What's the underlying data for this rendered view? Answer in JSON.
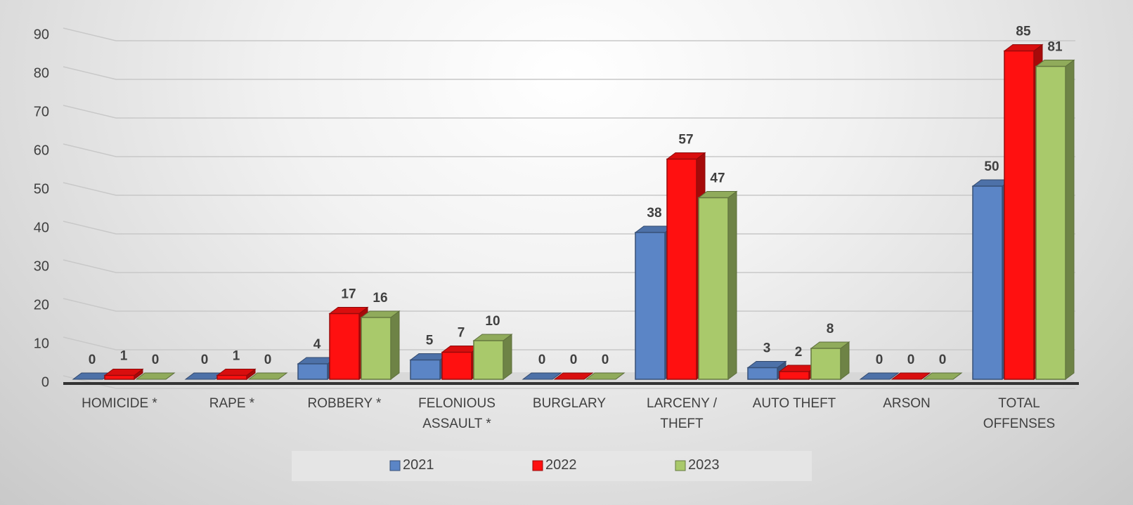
{
  "chart_data": {
    "type": "bar",
    "categories": [
      "HOMICIDE *",
      "RAPE *",
      "ROBBERY *",
      "FELONIOUS ASSAULT *",
      "BURGLARY",
      "LARCENY / THEFT",
      "AUTO THEFT",
      "ARSON",
      "TOTAL OFFENSES"
    ],
    "series": [
      {
        "name": "2021",
        "color": "#5b85c6",
        "values": [
          0,
          0,
          4,
          5,
          0,
          38,
          3,
          0,
          50
        ]
      },
      {
        "name": "2022",
        "color": "#ff1010",
        "values": [
          1,
          1,
          17,
          7,
          0,
          57,
          2,
          0,
          85
        ]
      },
      {
        "name": "2023",
        "color": "#a9c96b",
        "values": [
          0,
          0,
          16,
          10,
          0,
          47,
          8,
          0,
          81
        ]
      }
    ],
    "ylim": [
      0,
      90
    ],
    "yticks": [
      0,
      10,
      20,
      30,
      40,
      50,
      60,
      70,
      80,
      90
    ],
    "grid": true,
    "legend": "bottom"
  }
}
